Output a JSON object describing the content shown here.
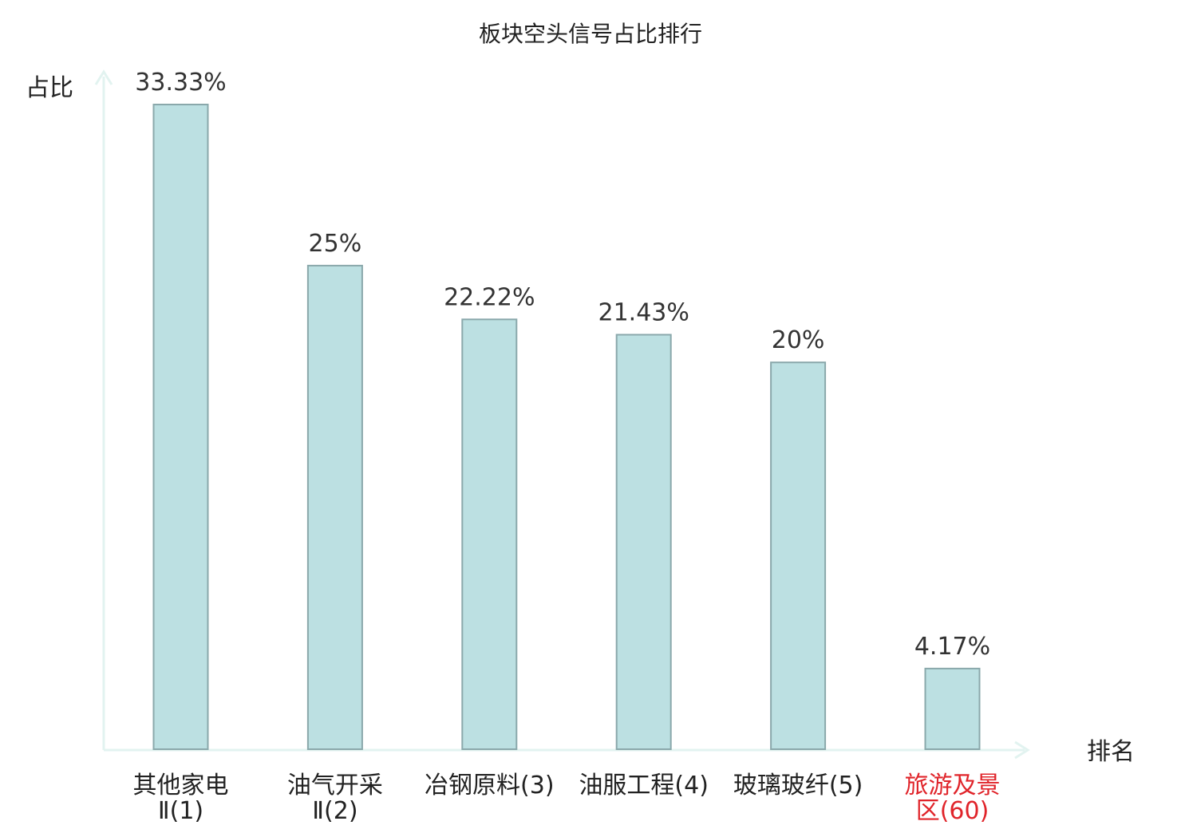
{
  "chart_data": {
    "type": "bar",
    "title": "板块空头信号占比排行",
    "ylabel": "占比",
    "xlabel": "排名",
    "categories": [
      [
        "其他家电",
        "Ⅱ(1)"
      ],
      [
        "油气开采",
        "Ⅱ(2)"
      ],
      [
        "冶钢原料(3)"
      ],
      [
        "油服工程(4)"
      ],
      [
        "玻璃玻纤(5)"
      ],
      [
        "旅游及景",
        "区(60)"
      ]
    ],
    "values": [
      33.33,
      25,
      22.22,
      21.43,
      20,
      4.17
    ],
    "value_labels": [
      "33.33%",
      "25%",
      "22.22%",
      "21.43%",
      "20%",
      "4.17%"
    ],
    "highlight_index": 5,
    "ylim": [
      0,
      33.33
    ],
    "grid": false,
    "legend": "none",
    "colors": {
      "bar_fill": "#bce0e2",
      "bar_stroke": "#8aa8ab",
      "axis": "#e2f3f0",
      "label_text": "#222222",
      "value_text": "#333333",
      "highlight_text": "#e0242a"
    }
  }
}
